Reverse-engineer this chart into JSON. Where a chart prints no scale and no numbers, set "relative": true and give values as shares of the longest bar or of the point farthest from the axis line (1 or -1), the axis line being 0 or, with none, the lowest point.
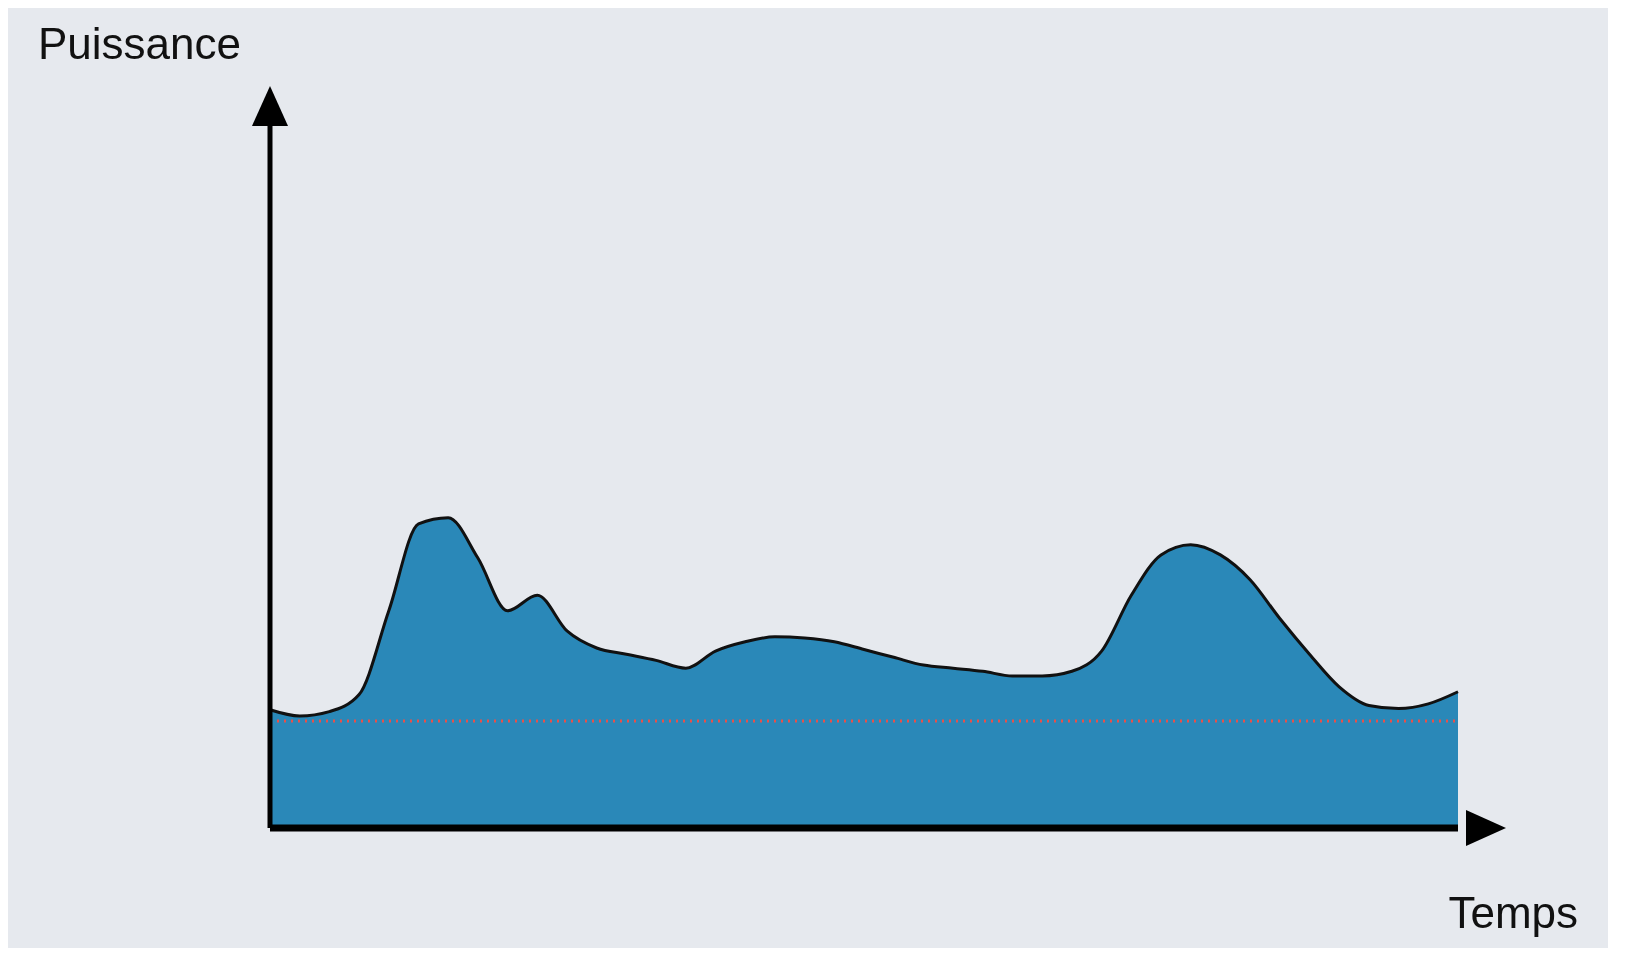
{
  "chart_data": {
    "type": "area",
    "xlabel": "Temps",
    "annotations": [
      "Puissance"
    ],
    "relative": true,
    "categories": [
      null,
      null,
      null,
      null,
      null,
      null,
      null,
      null,
      null,
      null,
      null,
      null,
      null,
      null,
      null,
      null,
      null,
      null,
      null,
      null,
      null,
      null,
      null,
      null,
      null,
      null,
      null,
      null,
      null,
      null,
      null,
      null,
      null,
      null,
      null,
      null,
      null,
      null,
      null,
      null,
      null
    ],
    "series": [
      {
        "color": "#2a88b8",
        "values": [
          0.381,
          0.361,
          0.375,
          0.43,
          0.7,
          0.98,
          1,
          0.87,
          0.7,
          0.75,
          0.635,
          0.58,
          0.56,
          0.54,
          0.515,
          0.57,
          0.6,
          0.616,
          0.612,
          0.6,
          0.575,
          0.55,
          0.525,
          0.515,
          0.505,
          0.49,
          0.49,
          0.505,
          0.57,
          0.75,
          0.88,
          0.913,
          0.88,
          0.8,
          0.675,
          0.56,
          0.455,
          0.395,
          0.385,
          0.4,
          0.439
        ]
      }
    ],
    "ref_lines": [
      {
        "axis": "y",
        "value": 0.345,
        "color": "#e8504a",
        "line_style": "dotted"
      }
    ]
  }
}
